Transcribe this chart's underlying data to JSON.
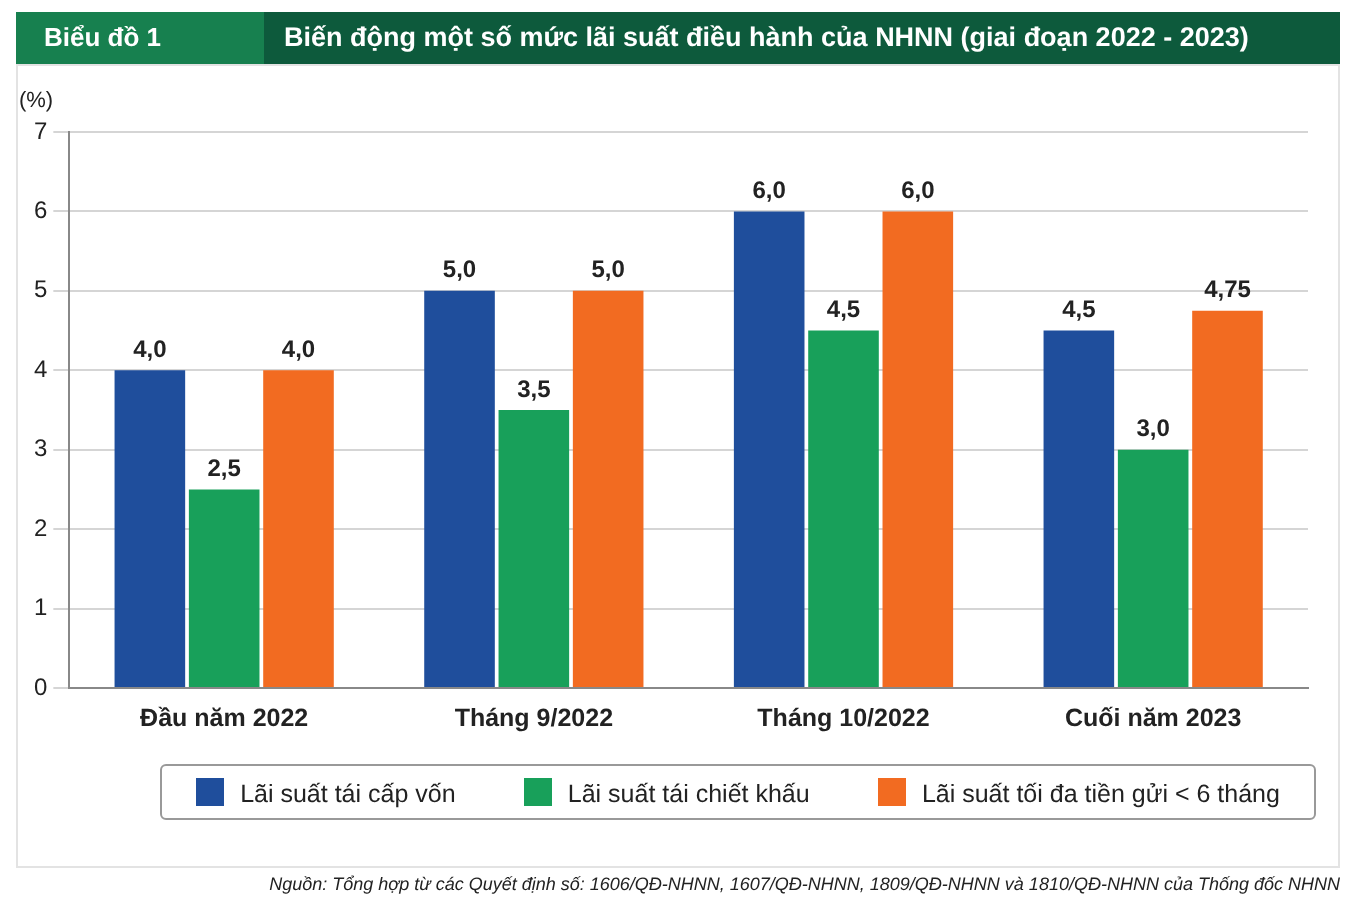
{
  "chart_data": {
    "type": "bar",
    "title": "Biểu đồ 1",
    "subtitle": "Biến động một số mức lãi suất điều hành của NHNN (giai đoạn 2022 - 2023)",
    "ylabel": "(%)",
    "categories": [
      "Đầu năm 2022",
      "Tháng 9/2022",
      "Tháng 10/2022",
      "Cuối năm 2023"
    ],
    "series": [
      {
        "name": "Lãi suất tái cấp vốn",
        "color": "#1f4e9c",
        "values": [
          4.0,
          5.0,
          6.0,
          4.5
        ],
        "value_labels": [
          "4,0",
          "5,0",
          "6,0",
          "4,5"
        ]
      },
      {
        "name": "Lãi suất tái chiết khấu",
        "color": "#18a05a",
        "values": [
          2.5,
          3.5,
          4.5,
          3.0
        ],
        "value_labels": [
          "2,5",
          "3,5",
          "4,5",
          "3,0"
        ]
      },
      {
        "name": "Lãi suất tối đa tiền gửi < 6 tháng",
        "color": "#f26b21",
        "values": [
          4.0,
          5.0,
          6.0,
          4.75
        ],
        "value_labels": [
          "4,0",
          "5,0",
          "6,0",
          "4,75"
        ]
      }
    ],
    "ylim": [
      0,
      7
    ],
    "yticks": [
      0,
      1,
      2,
      3,
      4,
      5,
      6,
      7
    ],
    "grid": "y",
    "legend": "bottom",
    "annotations": [
      "Nguồn: Tổng hợp từ các Quyết định số: 1606/QĐ-NHNN, 1607/QĐ-NHNN, 1809/QĐ-NHNN và 1810/QĐ-NHNN của Thống đốc NHNN"
    ]
  }
}
